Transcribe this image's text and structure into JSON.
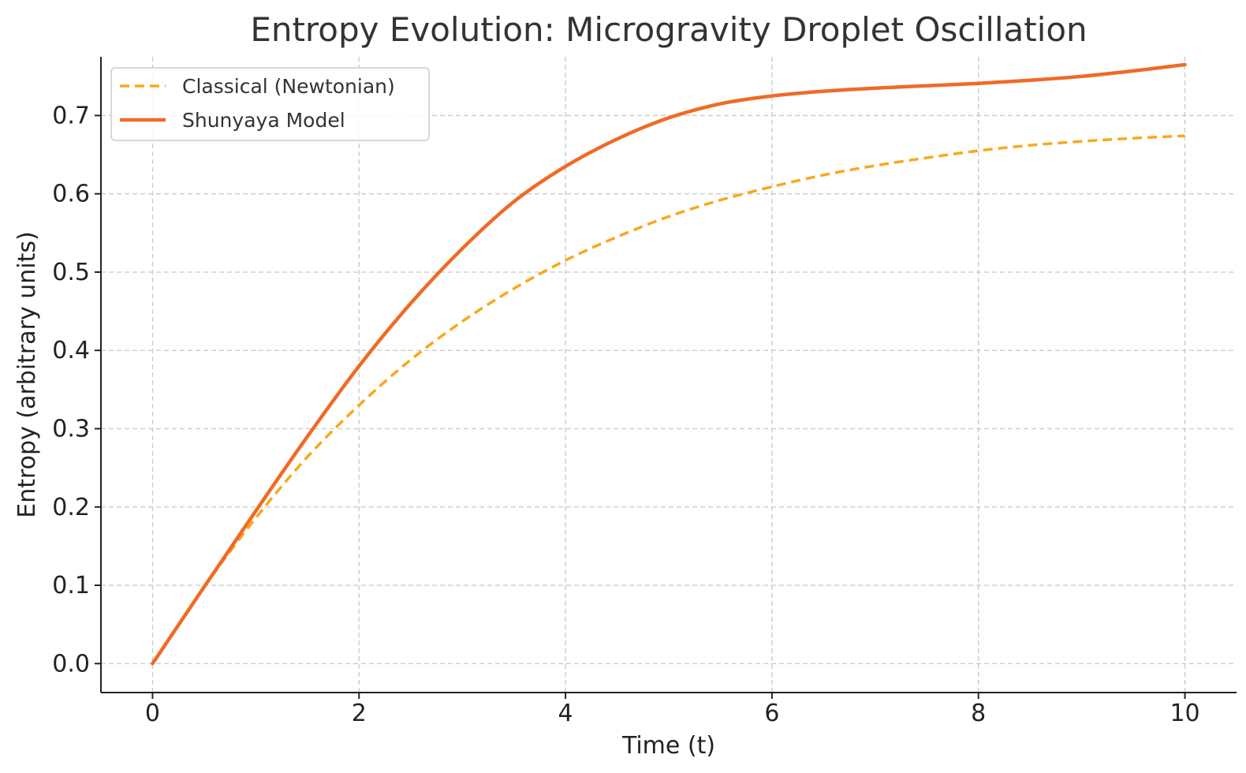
{
  "chart_data": {
    "type": "line",
    "title": "Entropy Evolution: Microgravity Droplet Oscillation",
    "xlabel": "Time (t)",
    "ylabel": "Entropy (arbitrary units)",
    "xlim": [
      -0.5,
      10.5
    ],
    "ylim": [
      -0.037,
      0.775
    ],
    "xticks": [
      0,
      2,
      4,
      6,
      8,
      10
    ],
    "yticks": [
      0.0,
      0.1,
      0.2,
      0.3,
      0.4,
      0.5,
      0.6,
      0.7
    ],
    "xtick_labels": [
      "0",
      "2",
      "4",
      "6",
      "8",
      "10"
    ],
    "ytick_labels": [
      "0.0",
      "0.1",
      "0.2",
      "0.3",
      "0.4",
      "0.5",
      "0.6",
      "0.7"
    ],
    "grid": true,
    "legend_position": "top-left",
    "x": [
      0,
      0.5,
      1,
      1.5,
      2,
      2.5,
      3,
      3.5,
      4,
      4.5,
      5,
      5.5,
      6,
      6.5,
      7,
      7.5,
      8,
      8.5,
      9,
      9.5,
      10
    ],
    "series": [
      {
        "name": "Classical (Newtonian)",
        "style": "dashed",
        "color": "#F9A81A",
        "values": [
          0.0,
          0.098,
          0.186,
          0.264,
          0.33,
          0.388,
          0.437,
          0.479,
          0.515,
          0.545,
          0.571,
          0.592,
          0.609,
          0.624,
          0.636,
          0.646,
          0.655,
          0.662,
          0.667,
          0.671,
          0.674
        ]
      },
      {
        "name": "Shunyaya Model",
        "style": "solid",
        "color": "#F06A25",
        "values": [
          0.0,
          0.098,
          0.195,
          0.29,
          0.38,
          0.46,
          0.53,
          0.59,
          0.635,
          0.67,
          0.697,
          0.715,
          0.725,
          0.731,
          0.735,
          0.738,
          0.741,
          0.745,
          0.75,
          0.757,
          0.765
        ]
      }
    ]
  }
}
